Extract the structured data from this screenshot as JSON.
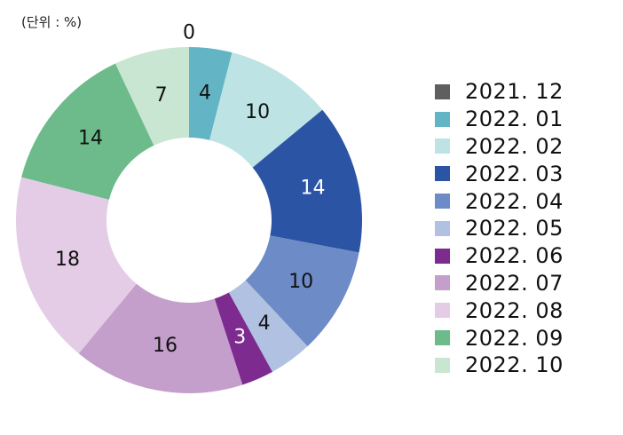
{
  "unit_label": "(단위 : %)",
  "chart_data": {
    "type": "pie",
    "donut": true,
    "legend_position": "right",
    "series": [
      {
        "name": "2021. 12",
        "value": 0,
        "color": "#5f5f5f",
        "label_color": "#111111"
      },
      {
        "name": "2022. 01",
        "value": 4,
        "color": "#63b5c6",
        "label_color": "#111111"
      },
      {
        "name": "2022. 02",
        "value": 10,
        "color": "#bde3e5",
        "label_color": "#111111"
      },
      {
        "name": "2022. 03",
        "value": 14,
        "color": "#2c54a5",
        "label_color": "#ffffff"
      },
      {
        "name": "2022. 04",
        "value": 10,
        "color": "#6d8bc6",
        "label_color": "#111111"
      },
      {
        "name": "2022. 05",
        "value": 4,
        "color": "#b1c1e2",
        "label_color": "#111111"
      },
      {
        "name": "2022. 06",
        "value": 3,
        "color": "#7d2b8f",
        "label_color": "#ffffff"
      },
      {
        "name": "2022. 07",
        "value": 16,
        "color": "#c59fcb",
        "label_color": "#111111"
      },
      {
        "name": "2022. 08",
        "value": 18,
        "color": "#e4cce6",
        "label_color": "#111111"
      },
      {
        "name": "2022. 09",
        "value": 14,
        "color": "#6dbb8a",
        "label_color": "#111111"
      },
      {
        "name": "2022. 10",
        "value": 7,
        "color": "#c8e6d2",
        "label_color": "#111111"
      }
    ]
  }
}
